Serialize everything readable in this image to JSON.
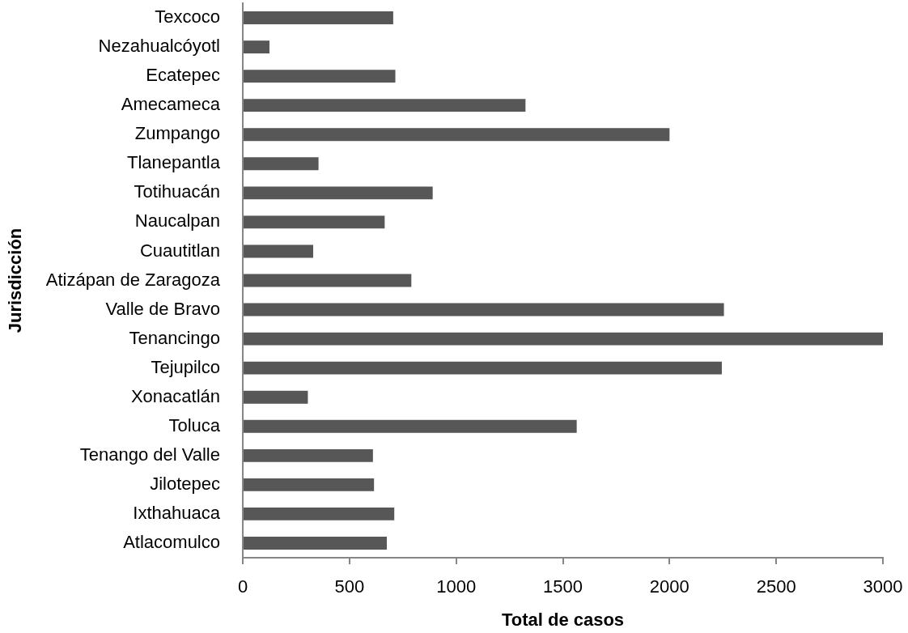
{
  "chart_data": {
    "type": "bar",
    "orientation": "horizontal",
    "xlabel": "Total de casos",
    "ylabel": "Jurisdicción",
    "categories": [
      "Texcoco",
      "Nezahualcóyotl",
      "Ecatepec",
      "Amecameca",
      "Zumpango",
      "Tlanepantla",
      "Totihuacán",
      "Naucalpan",
      "Cuautitlan",
      "Atizápan de Zaragoza",
      "Valle de Bravo",
      "Tenancingo",
      "Tejupilco",
      "Xonacatlán",
      "Toluca",
      "Tenango del Valle",
      "Jilotepec",
      "Ixthahuaca",
      "Atlacomulco"
    ],
    "values": [
      705,
      125,
      715,
      1325,
      2000,
      355,
      890,
      665,
      330,
      790,
      2255,
      3000,
      2245,
      305,
      1565,
      610,
      615,
      710,
      675
    ],
    "color": "#575757",
    "xlim": [
      0,
      3000
    ],
    "xticks": [
      0,
      500,
      1000,
      1500,
      2000,
      2500,
      3000
    ]
  }
}
